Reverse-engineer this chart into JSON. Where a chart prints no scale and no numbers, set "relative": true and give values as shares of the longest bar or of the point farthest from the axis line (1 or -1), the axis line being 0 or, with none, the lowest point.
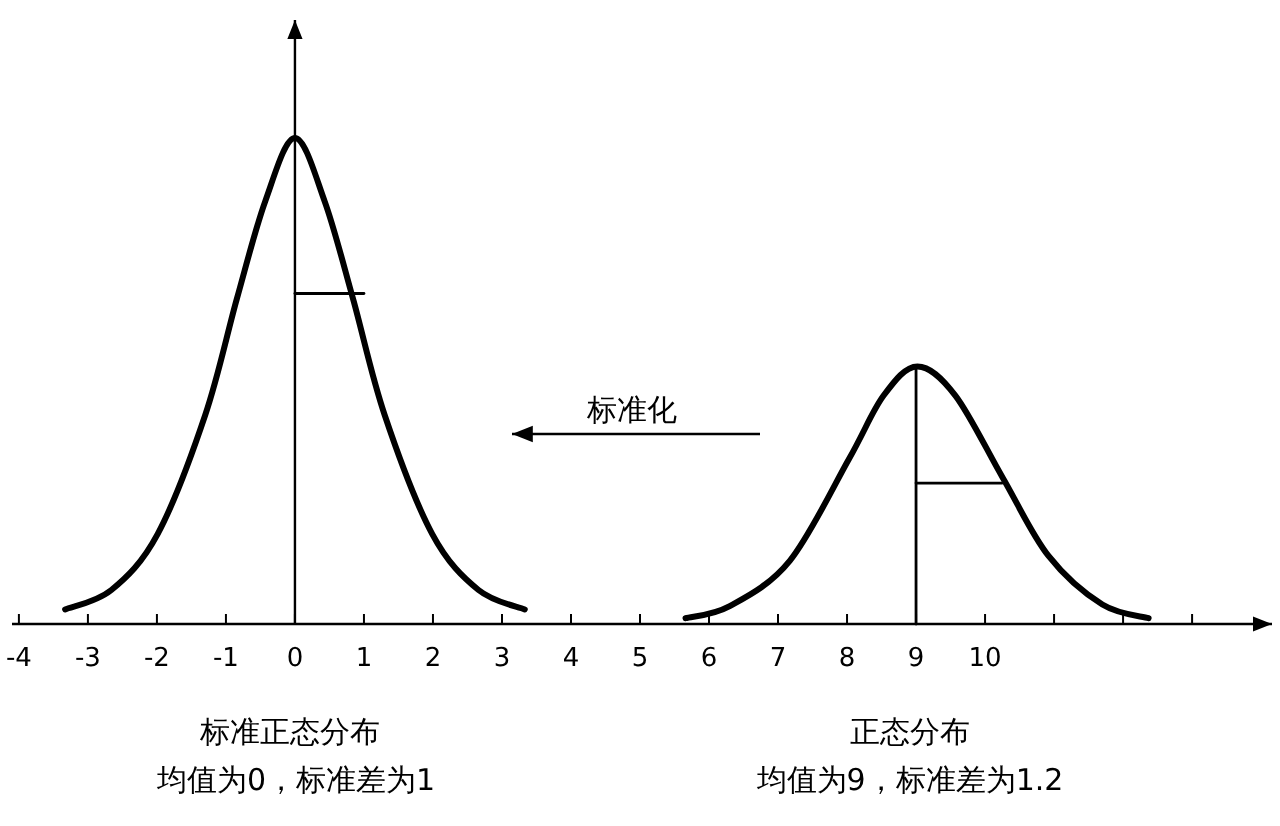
{
  "chart_data": {
    "type": "line",
    "relative": true,
    "xlim": [
      -4.1,
      14.1
    ],
    "xticks": [
      -4,
      -3,
      -2,
      -1,
      0,
      1,
      2,
      3,
      4,
      5,
      6,
      7,
      8,
      9,
      10,
      {
        "value": 11,
        "label": null
      },
      {
        "value": 12,
        "label": null
      },
      {
        "value": 13,
        "label": null
      }
    ],
    "line_style": "solid",
    "annotations": [
      "标准化",
      "标准正态分布",
      "均值为0，标准差为1",
      "正态分布",
      "均值为9，标准差为1.2"
    ],
    "series": [
      {
        "color": "#000000",
        "x": [
          -3.33,
          -2.66,
          -1.99,
          -1.3,
          -0.84,
          -0.43,
          0,
          0.43,
          0.84,
          1.3,
          1.99,
          2.66,
          3.33
        ],
        "values": [
          0.03,
          0.07,
          0.185,
          0.43,
          0.67,
          0.87,
          1,
          0.87,
          0.67,
          0.43,
          0.185,
          0.07,
          0.03
        ]
      },
      {
        "color": "#000000",
        "x": [
          5.66,
          6.3,
          7.17,
          8.03,
          8.53,
          9.02,
          9.57,
          10.26,
          10.92,
          11.7,
          12.37
        ],
        "values": [
          0.012,
          0.037,
          0.13,
          0.34,
          0.47,
          0.53,
          0.47,
          0.3,
          0.14,
          0.04,
          0.012
        ]
      },
      {
        "color": "#000000",
        "x": [
          0,
          1
        ],
        "values": [
          0.68,
          0.68
        ]
      },
      {
        "color": "#000000",
        "x": [
          9,
          9,
          9
        ],
        "values": [
          0,
          0.265,
          0.53
        ]
      },
      {
        "color": "#000000",
        "x": [
          9,
          10.25
        ],
        "values": [
          0.29,
          0.29
        ]
      }
    ]
  }
}
